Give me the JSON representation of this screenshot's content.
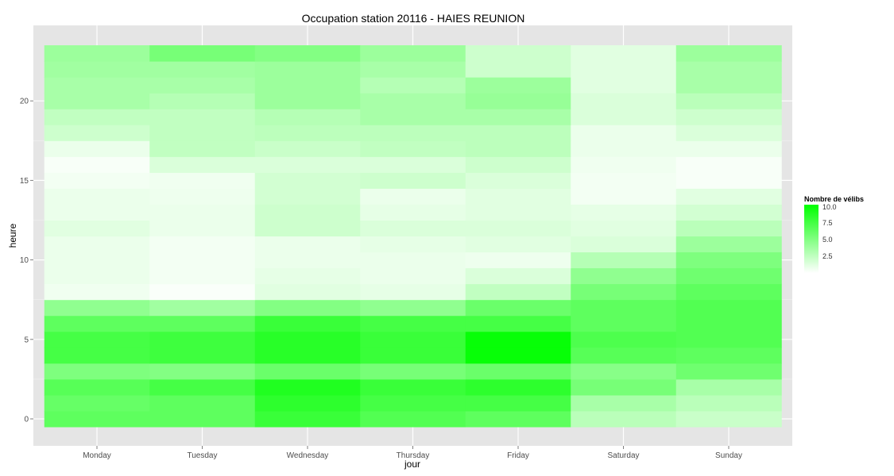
{
  "chart_data": {
    "type": "heatmap",
    "title": "Occupation station 20116 - HAIES REUNION",
    "xlabel": "jour",
    "ylabel": "heure",
    "categories": [
      "Monday",
      "Tuesday",
      "Wednesday",
      "Thursday",
      "Friday",
      "Saturday",
      "Sunday"
    ],
    "hours": [
      0,
      1,
      2,
      3,
      4,
      5,
      6,
      7,
      8,
      9,
      10,
      11,
      12,
      13,
      14,
      15,
      16,
      17,
      18,
      19,
      20,
      21,
      22,
      23
    ],
    "y_ticks": [
      0,
      5,
      10,
      15,
      20
    ],
    "ylim": [
      -0.5,
      23.5
    ],
    "values": [
      [
        6.5,
        6.5,
        8.0,
        7.0,
        6.5,
        2.8,
        2.2
      ],
      [
        6.2,
        6.5,
        8.5,
        7.5,
        7.5,
        3.5,
        2.8
      ],
      [
        6.8,
        7.5,
        9.0,
        8.0,
        8.5,
        5.5,
        3.5
      ],
      [
        5.2,
        5.0,
        6.0,
        5.5,
        6.0,
        4.8,
        5.8
      ],
      [
        7.5,
        7.8,
        8.7,
        8.0,
        10.0,
        6.8,
        6.5
      ],
      [
        7.5,
        7.8,
        8.7,
        8.0,
        10.0,
        7.2,
        7.0
      ],
      [
        6.5,
        6.5,
        8.0,
        7.5,
        7.5,
        6.5,
        7.0
      ],
      [
        4.5,
        3.8,
        5.0,
        4.5,
        6.0,
        6.5,
        7.0
      ],
      [
        0.6,
        0.2,
        1.2,
        1.0,
        2.5,
        5.5,
        6.5
      ],
      [
        0.8,
        0.5,
        1.0,
        0.8,
        1.5,
        4.5,
        5.8
      ],
      [
        0.8,
        0.5,
        0.8,
        0.8,
        0.7,
        3.0,
        5.2
      ],
      [
        0.8,
        0.5,
        0.8,
        1.0,
        1.2,
        1.5,
        4.0
      ],
      [
        1.2,
        0.8,
        2.0,
        1.5,
        1.5,
        1.2,
        2.8
      ],
      [
        0.8,
        0.8,
        2.0,
        1.0,
        1.2,
        1.0,
        1.8
      ],
      [
        0.8,
        0.7,
        1.8,
        0.8,
        1.2,
        0.5,
        1.2
      ],
      [
        0.5,
        0.6,
        1.8,
        2.0,
        1.5,
        0.5,
        0.3
      ],
      [
        0.3,
        1.5,
        1.5,
        1.5,
        2.0,
        0.6,
        0.3
      ],
      [
        0.8,
        2.5,
        2.2,
        2.5,
        2.7,
        0.8,
        0.8
      ],
      [
        2.0,
        2.5,
        2.7,
        2.7,
        2.7,
        0.8,
        1.5
      ],
      [
        2.5,
        2.5,
        3.0,
        3.5,
        3.5,
        1.5,
        2.0
      ],
      [
        3.5,
        3.0,
        4.0,
        3.5,
        4.2,
        1.5,
        2.8
      ],
      [
        3.5,
        3.5,
        4.0,
        3.0,
        4.0,
        1.2,
        3.5
      ],
      [
        3.8,
        3.8,
        4.0,
        3.5,
        2.0,
        1.2,
        3.5
      ],
      [
        4.0,
        5.5,
        5.0,
        4.0,
        2.0,
        1.2,
        4.0
      ]
    ],
    "color_scale": {
      "low_color": "#ffffff",
      "high_color": "#00ff00",
      "domain": [
        0,
        10.3
      ]
    },
    "legend": {
      "title": "Nombre de vélibs",
      "position": "right",
      "labels": [
        {
          "value": 10.0,
          "text": "10.0"
        },
        {
          "value": 7.5,
          "text": "7.5"
        },
        {
          "value": 5.0,
          "text": "5.0"
        },
        {
          "value": 2.5,
          "text": "2.5"
        }
      ]
    },
    "grid": true,
    "panel_background": "#e5e5e5",
    "grid_color": "#ffffff"
  }
}
